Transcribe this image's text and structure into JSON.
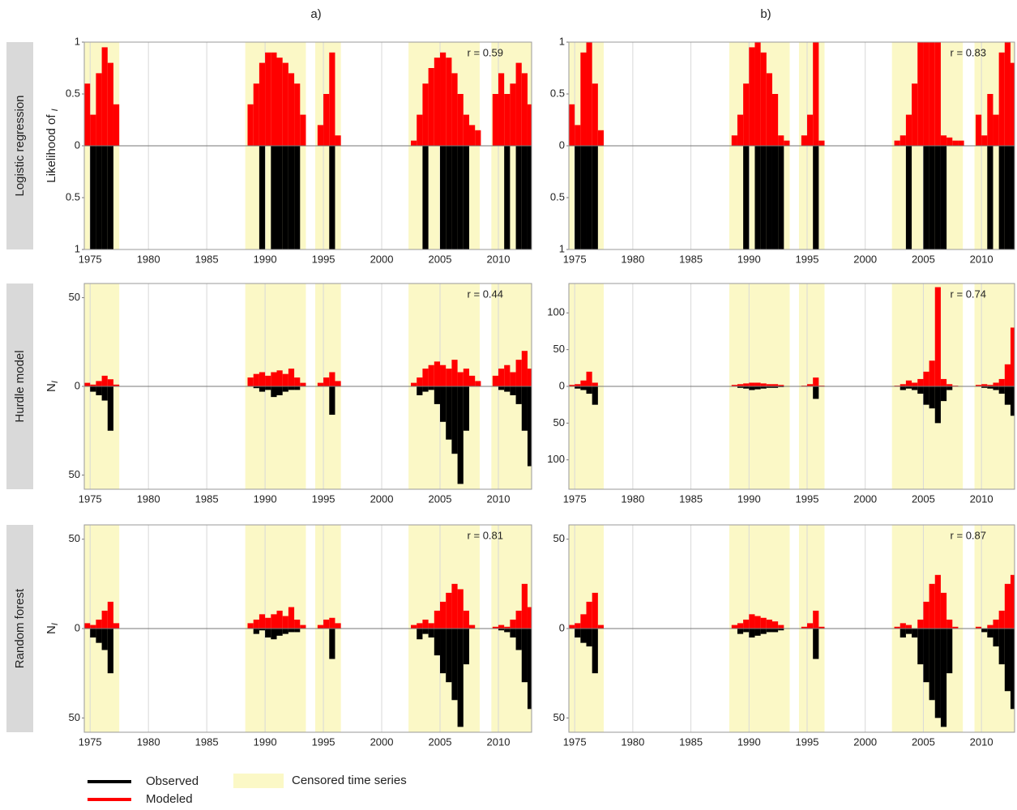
{
  "column_labels": [
    "a)",
    "b)"
  ],
  "row_labels": [
    "Logistic regression",
    "Hurdle model",
    "Random forest"
  ],
  "legend": {
    "series": [
      {
        "name": "Observed",
        "color": "#000000"
      },
      {
        "name": "Modeled",
        "color": "#ff0000"
      }
    ],
    "censored": {
      "label": "Censored time series",
      "color": "#fbf8c6"
    }
  },
  "chart_data": [
    {
      "type": "mirror_bar",
      "ylabel": "Likelihood of ",
      "ylabel_sub": "I",
      "annotation": "r = 0.59",
      "xlim": [
        1974.5,
        2012.85
      ],
      "xticks": [
        1975,
        1980,
        1985,
        1990,
        1995,
        2000,
        2005,
        2010
      ],
      "ylim": [
        -1,
        1
      ],
      "yticks": [
        {
          "value": -1,
          "label": "1"
        },
        {
          "value": -0.5,
          "label": "0.5"
        },
        0,
        0.5,
        1
      ],
      "censored": [
        [
          1974.5,
          1977.5
        ],
        [
          1988.3,
          1993.5
        ],
        [
          1994.3,
          1996.5
        ],
        [
          2002.3,
          2008.4
        ],
        [
          2009.4,
          2012.85
        ]
      ],
      "x": [
        1974.75,
        1975.25,
        1975.75,
        1976.25,
        1976.75,
        1977.25,
        1988.75,
        1989.25,
        1989.75,
        1990.25,
        1990.75,
        1991.25,
        1991.75,
        1992.25,
        1992.75,
        1993.25,
        1994.75,
        1995.25,
        1995.75,
        1996.25,
        2002.75,
        2003.25,
        2003.75,
        2004.25,
        2004.75,
        2005.25,
        2005.75,
        2006.25,
        2006.75,
        2007.25,
        2007.75,
        2008.25,
        2009.75,
        2010.25,
        2010.75,
        2011.25,
        2011.75,
        2012.25,
        2012.75
      ],
      "modeled": [
        0.6,
        0.3,
        0.7,
        0.95,
        0.8,
        0.4,
        0.4,
        0.6,
        0.8,
        0.9,
        0.9,
        0.85,
        0.8,
        0.7,
        0.6,
        0.3,
        0.2,
        0.5,
        0.9,
        0.1,
        0.05,
        0.3,
        0.6,
        0.75,
        0.85,
        0.9,
        0.85,
        0.7,
        0.5,
        0.3,
        0.2,
        0.15,
        0.5,
        0.7,
        0.5,
        0.6,
        0.8,
        0.7,
        0.4
      ],
      "observed": [
        0,
        -1,
        -1,
        -1,
        -1,
        0,
        0,
        0,
        -1,
        0,
        -1,
        -1,
        -1,
        -1,
        -1,
        0,
        0,
        0,
        -1,
        0,
        0,
        0,
        -1,
        0,
        0,
        -1,
        -1,
        -1,
        -1,
        -1,
        0,
        0,
        0,
        0,
        -1,
        0,
        -1,
        -1,
        -1
      ]
    },
    {
      "type": "mirror_bar",
      "annotation": "r = 0.83",
      "xlim": [
        1974.5,
        2012.85
      ],
      "xticks": [
        1975,
        1980,
        1985,
        1990,
        1995,
        2000,
        2005,
        2010
      ],
      "ylim": [
        -1,
        1
      ],
      "yticks": [
        {
          "value": -1,
          "label": "1"
        },
        {
          "value": -0.5,
          "label": "0.5"
        },
        0,
        0.5,
        1
      ],
      "censored": [
        [
          1974.5,
          1977.5
        ],
        [
          1988.3,
          1993.5
        ],
        [
          1994.3,
          1996.5
        ],
        [
          2002.3,
          2008.4
        ],
        [
          2009.4,
          2012.85
        ]
      ],
      "x": [
        1974.75,
        1975.25,
        1975.75,
        1976.25,
        1976.75,
        1977.25,
        1988.75,
        1989.25,
        1989.75,
        1990.25,
        1990.75,
        1991.25,
        1991.75,
        1992.25,
        1992.75,
        1993.25,
        1994.75,
        1995.25,
        1995.75,
        1996.25,
        2002.75,
        2003.25,
        2003.75,
        2004.25,
        2004.75,
        2005.25,
        2005.75,
        2006.25,
        2006.75,
        2007.25,
        2007.75,
        2008.25,
        2009.75,
        2010.25,
        2010.75,
        2011.25,
        2011.75,
        2012.25,
        2012.75
      ],
      "modeled": [
        0.4,
        0.2,
        0.9,
        1,
        0.6,
        0.15,
        0.1,
        0.3,
        0.6,
        0.95,
        1,
        0.9,
        0.7,
        0.5,
        0.1,
        0.05,
        0.1,
        0.3,
        1,
        0.05,
        0.05,
        0.1,
        0.3,
        0.6,
        1,
        1,
        1,
        1,
        0.1,
        0.08,
        0.05,
        0.05,
        0.3,
        0.1,
        0.5,
        0.3,
        0.9,
        1,
        0.8
      ],
      "observed": [
        0,
        -1,
        -1,
        -1,
        -1,
        0,
        0,
        0,
        -1,
        0,
        -1,
        -1,
        -1,
        -1,
        -1,
        0,
        0,
        0,
        -1,
        0,
        0,
        0,
        -1,
        0,
        0,
        -1,
        -1,
        -1,
        -1,
        0,
        0,
        0,
        0,
        0,
        -1,
        0,
        -1,
        -1,
        -1
      ]
    },
    {
      "type": "mirror_bar",
      "ylabel": "N",
      "ylabel_sub": "I",
      "annotation": "r = 0.44",
      "xlim": [
        1974.5,
        2012.85
      ],
      "xticks": [
        1975,
        1980,
        1985,
        1990,
        1995,
        2000,
        2005,
        2010
      ],
      "ylim": [
        -58,
        58
      ],
      "yticks": [
        {
          "value": -50,
          "label": "50"
        },
        0,
        50
      ],
      "censored": [
        [
          1974.5,
          1977.5
        ],
        [
          1988.3,
          1993.5
        ],
        [
          1994.3,
          1996.5
        ],
        [
          2002.3,
          2008.4
        ],
        [
          2009.4,
          2012.85
        ]
      ],
      "x": [
        1974.75,
        1975.25,
        1975.75,
        1976.25,
        1976.75,
        1977.25,
        1988.75,
        1989.25,
        1989.75,
        1990.25,
        1990.75,
        1991.25,
        1991.75,
        1992.25,
        1992.75,
        1993.25,
        1994.75,
        1995.25,
        1995.75,
        1996.25,
        2002.75,
        2003.25,
        2003.75,
        2004.25,
        2004.75,
        2005.25,
        2005.75,
        2006.25,
        2006.75,
        2007.25,
        2007.75,
        2008.25,
        2009.75,
        2010.25,
        2010.75,
        2011.25,
        2011.75,
        2012.25,
        2012.75
      ],
      "modeled": [
        2,
        1,
        3,
        6,
        4,
        1,
        5,
        7,
        8,
        6,
        8,
        9,
        7,
        10,
        5,
        2,
        2,
        5,
        8,
        3,
        2,
        5,
        10,
        12,
        14,
        12,
        10,
        15,
        8,
        10,
        6,
        3,
        6,
        10,
        12,
        8,
        15,
        20,
        10
      ],
      "observed": [
        0,
        -3,
        -5,
        -8,
        -25,
        0,
        0,
        -1,
        -3,
        -2,
        -6,
        -5,
        -3,
        -2,
        -2,
        0,
        0,
        0,
        -16,
        0,
        0,
        -5,
        -3,
        -2,
        -10,
        -20,
        -30,
        -38,
        -55,
        -25,
        0,
        0,
        0,
        -2,
        -3,
        -5,
        -10,
        -25,
        -45
      ]
    },
    {
      "type": "mirror_bar",
      "annotation": "r = 0.74",
      "xlim": [
        1974.5,
        2012.85
      ],
      "xticks": [
        1975,
        1980,
        1985,
        1990,
        1995,
        2000,
        2005,
        2010
      ],
      "ylim": [
        -140,
        140
      ],
      "yticks": [
        {
          "value": -100,
          "label": "100"
        },
        {
          "value": -50,
          "label": "50"
        },
        0,
        50,
        100
      ],
      "censored": [
        [
          1974.5,
          1977.5
        ],
        [
          1988.3,
          1993.5
        ],
        [
          1994.3,
          1996.5
        ],
        [
          2002.3,
          2008.4
        ],
        [
          2009.4,
          2012.85
        ]
      ],
      "x": [
        1974.75,
        1975.25,
        1975.75,
        1976.25,
        1976.75,
        1977.25,
        1988.75,
        1989.25,
        1989.75,
        1990.25,
        1990.75,
        1991.25,
        1991.75,
        1992.25,
        1992.75,
        1993.25,
        1994.75,
        1995.25,
        1995.75,
        1996.25,
        2002.75,
        2003.25,
        2003.75,
        2004.25,
        2004.75,
        2005.25,
        2005.75,
        2006.25,
        2006.75,
        2007.25,
        2007.75,
        2008.25,
        2009.75,
        2010.25,
        2010.75,
        2011.25,
        2011.75,
        2012.25,
        2012.75
      ],
      "modeled": [
        2,
        3,
        8,
        20,
        5,
        0,
        2,
        3,
        4,
        5,
        5,
        4,
        3,
        3,
        2,
        0,
        1,
        3,
        12,
        1,
        1,
        3,
        8,
        5,
        10,
        20,
        35,
        135,
        10,
        3,
        1,
        0,
        2,
        3,
        2,
        5,
        10,
        30,
        80
      ],
      "observed": [
        0,
        -3,
        -5,
        -10,
        -25,
        0,
        0,
        -2,
        -3,
        -5,
        -4,
        -3,
        -2,
        -2,
        -1,
        0,
        0,
        0,
        -17,
        0,
        0,
        -5,
        -3,
        -5,
        -10,
        -25,
        -30,
        -50,
        -20,
        -5,
        0,
        0,
        0,
        -2,
        -3,
        -5,
        -10,
        -25,
        -40
      ]
    },
    {
      "type": "mirror_bar",
      "ylabel": "N",
      "ylabel_sub": "I",
      "annotation": "r = 0.81",
      "xlim": [
        1974.5,
        2012.85
      ],
      "xticks": [
        1975,
        1980,
        1985,
        1990,
        1995,
        2000,
        2005,
        2010
      ],
      "ylim": [
        -58,
        58
      ],
      "yticks": [
        {
          "value": -50,
          "label": "50"
        },
        0,
        50
      ],
      "censored": [
        [
          1974.5,
          1977.5
        ],
        [
          1988.3,
          1993.5
        ],
        [
          1994.3,
          1996.5
        ],
        [
          2002.3,
          2008.4
        ],
        [
          2009.4,
          2012.85
        ]
      ],
      "x": [
        1974.75,
        1975.25,
        1975.75,
        1976.25,
        1976.75,
        1977.25,
        1988.75,
        1989.25,
        1989.75,
        1990.25,
        1990.75,
        1991.25,
        1991.75,
        1992.25,
        1992.75,
        1993.25,
        1994.75,
        1995.25,
        1995.75,
        1996.25,
        2002.75,
        2003.25,
        2003.75,
        2004.25,
        2004.75,
        2005.25,
        2005.75,
        2006.25,
        2006.75,
        2007.25,
        2007.75,
        2008.25,
        2009.75,
        2010.25,
        2010.75,
        2011.25,
        2011.75,
        2012.25,
        2012.75
      ],
      "modeled": [
        3,
        2,
        5,
        10,
        15,
        3,
        3,
        5,
        8,
        6,
        8,
        10,
        7,
        12,
        5,
        2,
        2,
        5,
        6,
        3,
        2,
        3,
        5,
        3,
        10,
        15,
        20,
        25,
        22,
        10,
        2,
        0,
        1,
        2,
        1,
        5,
        10,
        25,
        12
      ],
      "observed": [
        0,
        -5,
        -8,
        -12,
        -25,
        0,
        0,
        -3,
        -1,
        -5,
        -6,
        -4,
        -3,
        -2,
        -2,
        0,
        0,
        0,
        -17,
        0,
        0,
        -6,
        -3,
        -5,
        -15,
        -25,
        -30,
        -40,
        -55,
        -20,
        0,
        0,
        0,
        -1,
        -2,
        -5,
        -12,
        -30,
        -45
      ]
    },
    {
      "type": "mirror_bar",
      "annotation": "r = 0.87",
      "xlim": [
        1974.5,
        2012.85
      ],
      "xticks": [
        1975,
        1980,
        1985,
        1990,
        1995,
        2000,
        2005,
        2010
      ],
      "ylim": [
        -58,
        58
      ],
      "yticks": [
        {
          "value": -50,
          "label": "50"
        },
        0,
        50
      ],
      "censored": [
        [
          1974.5,
          1977.5
        ],
        [
          1988.3,
          1993.5
        ],
        [
          1994.3,
          1996.5
        ],
        [
          2002.3,
          2008.4
        ],
        [
          2009.4,
          2012.85
        ]
      ],
      "x": [
        1974.75,
        1975.25,
        1975.75,
        1976.25,
        1976.75,
        1977.25,
        1988.75,
        1989.25,
        1989.75,
        1990.25,
        1990.75,
        1991.25,
        1991.75,
        1992.25,
        1992.75,
        1993.25,
        1994.75,
        1995.25,
        1995.75,
        1996.25,
        2002.75,
        2003.25,
        2003.75,
        2004.25,
        2004.75,
        2005.25,
        2005.75,
        2006.25,
        2006.75,
        2007.25,
        2007.75,
        2008.25,
        2009.75,
        2010.25,
        2010.75,
        2011.25,
        2011.75,
        2012.25,
        2012.75
      ],
      "modeled": [
        2,
        3,
        8,
        15,
        20,
        2,
        2,
        3,
        5,
        8,
        7,
        6,
        5,
        4,
        2,
        0,
        1,
        3,
        10,
        1,
        1,
        3,
        2,
        0,
        5,
        15,
        25,
        30,
        20,
        5,
        1,
        0,
        1,
        0,
        2,
        5,
        10,
        25,
        30
      ],
      "observed": [
        0,
        -5,
        -8,
        -10,
        -25,
        0,
        0,
        -3,
        -2,
        -5,
        -4,
        -3,
        -2,
        -2,
        -1,
        0,
        0,
        0,
        -17,
        0,
        0,
        -5,
        -3,
        -5,
        -20,
        -30,
        -40,
        -50,
        -55,
        -25,
        0,
        0,
        0,
        -2,
        -5,
        -10,
        -20,
        -35,
        -45
      ]
    }
  ]
}
